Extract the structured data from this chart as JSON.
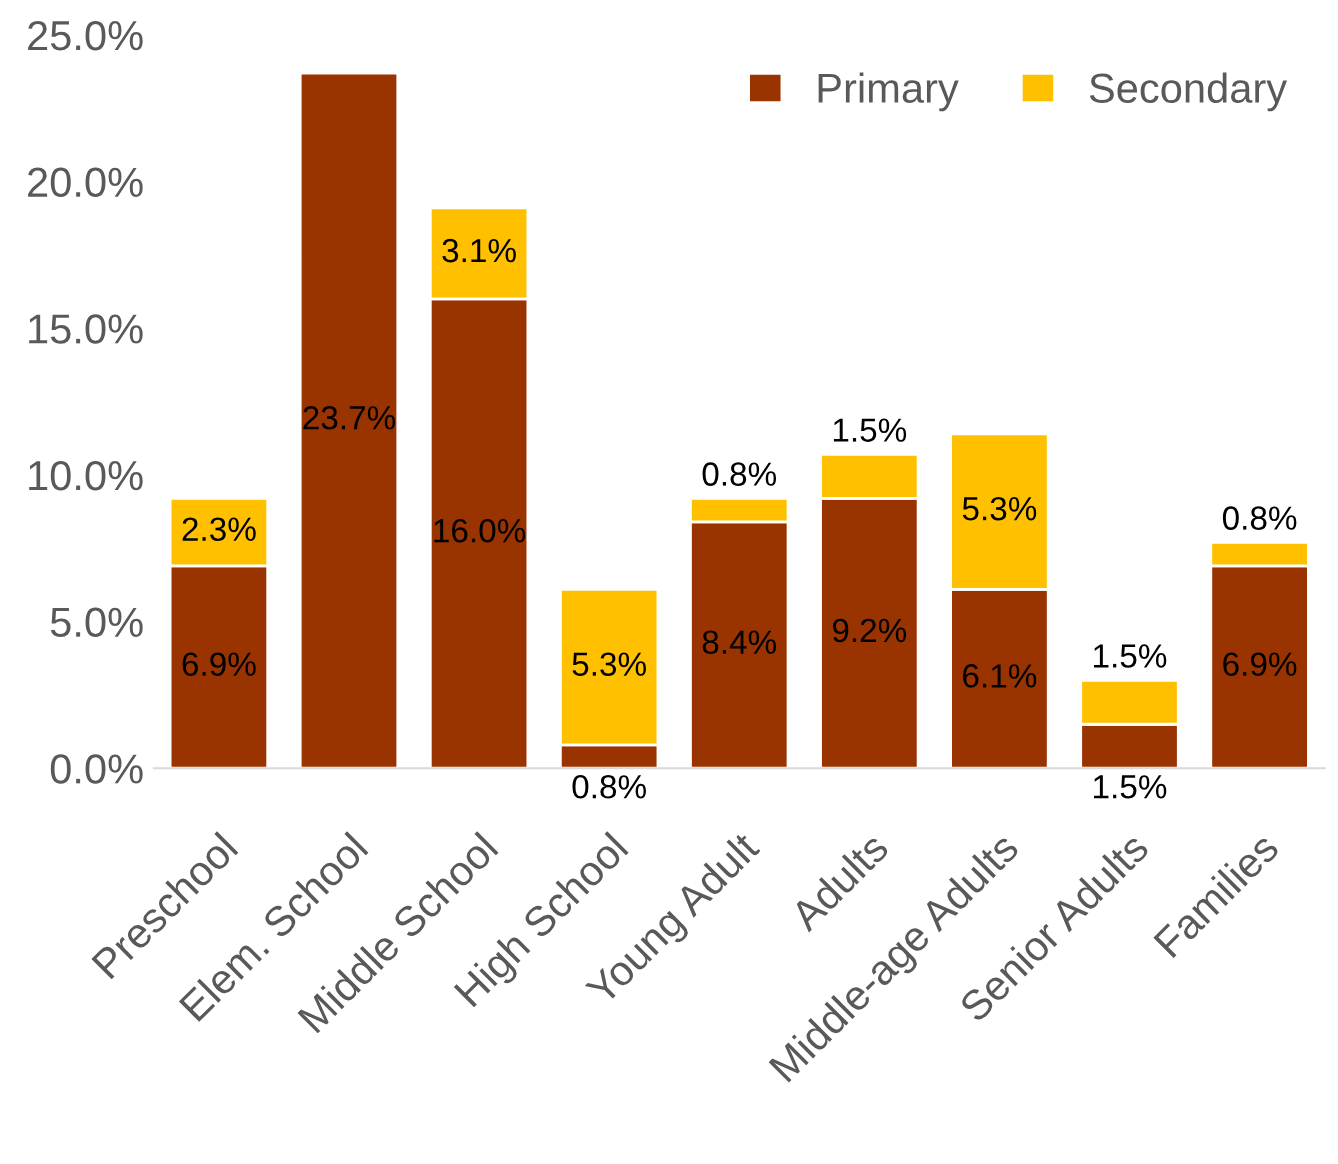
{
  "chart_data": {
    "type": "bar",
    "stacked": true,
    "categories": [
      "Preschool",
      "Elem. School",
      "Middle School",
      "High School",
      "Young Adult",
      "Adults",
      "Middle-age Adults",
      "Senior Adults",
      "Families"
    ],
    "series": [
      {
        "name": "Primary",
        "color": "#993300",
        "values": [
          6.9,
          23.7,
          16.0,
          0.8,
          8.4,
          9.2,
          6.1,
          1.5,
          6.9
        ],
        "value_labels": [
          "6.9%",
          "23.7%",
          "16.0%",
          "0.8%",
          "8.4%",
          "9.2%",
          "6.1%",
          "1.5%",
          "6.9%"
        ]
      },
      {
        "name": "Secondary",
        "color": "#ffc000",
        "values": [
          2.3,
          null,
          3.1,
          5.3,
          0.8,
          1.5,
          5.3,
          1.5,
          0.8
        ],
        "value_labels": [
          "2.3%",
          null,
          "3.1%",
          "5.3%",
          "0.8%",
          "1.5%",
          "5.3%",
          "1.5%",
          "0.8%"
        ]
      }
    ],
    "ylim": [
      0,
      25
    ],
    "yticks": [
      {
        "value": 0,
        "label": "0.0%"
      },
      {
        "value": 5,
        "label": "5.0%"
      },
      {
        "value": 10,
        "label": "10.0%"
      },
      {
        "value": 15,
        "label": "15.0%"
      },
      {
        "value": 20,
        "label": "20.0%"
      },
      {
        "value": 25,
        "label": "25.0%"
      }
    ],
    "grid": false,
    "legend": "top right"
  }
}
